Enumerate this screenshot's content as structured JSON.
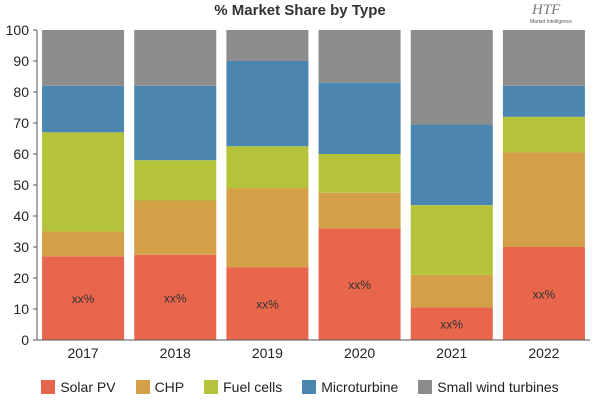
{
  "chart_data": {
    "type": "bar",
    "stacked": true,
    "title": "% Market Share by Type",
    "categories": [
      "2017",
      "2018",
      "2019",
      "2020",
      "2021",
      "2022"
    ],
    "ylim": [
      0,
      100
    ],
    "yticks": [
      0,
      10,
      20,
      30,
      40,
      50,
      60,
      70,
      80,
      90,
      100
    ],
    "grid": false,
    "legend_position": "bottom",
    "series": [
      {
        "name": "Solar PV",
        "color": "#e8664c",
        "values": [
          27,
          27.5,
          23.5,
          36,
          10.5,
          30
        ]
      },
      {
        "name": "CHP",
        "color": "#d4a047",
        "values": [
          8,
          17.5,
          25.5,
          11.5,
          10.5,
          30.5
        ]
      },
      {
        "name": "Fuel cells",
        "color": "#b5c33a",
        "values": [
          32,
          13,
          13.5,
          12.5,
          22.5,
          11.5
        ]
      },
      {
        "name": "Microturbine",
        "color": "#4a86b0",
        "values": [
          15,
          24,
          27.5,
          23,
          26,
          10
        ]
      },
      {
        "name": "Small wind turbines",
        "color": "#8c8c8c",
        "values": [
          18,
          18,
          10,
          17,
          30.5,
          18
        ]
      }
    ],
    "data_labels": [
      "xx%",
      "xx%",
      "xx%",
      "xx%",
      "xx%",
      "xx%"
    ]
  },
  "logo": {
    "brand": "HTF",
    "sub": "Market Intelligence"
  }
}
